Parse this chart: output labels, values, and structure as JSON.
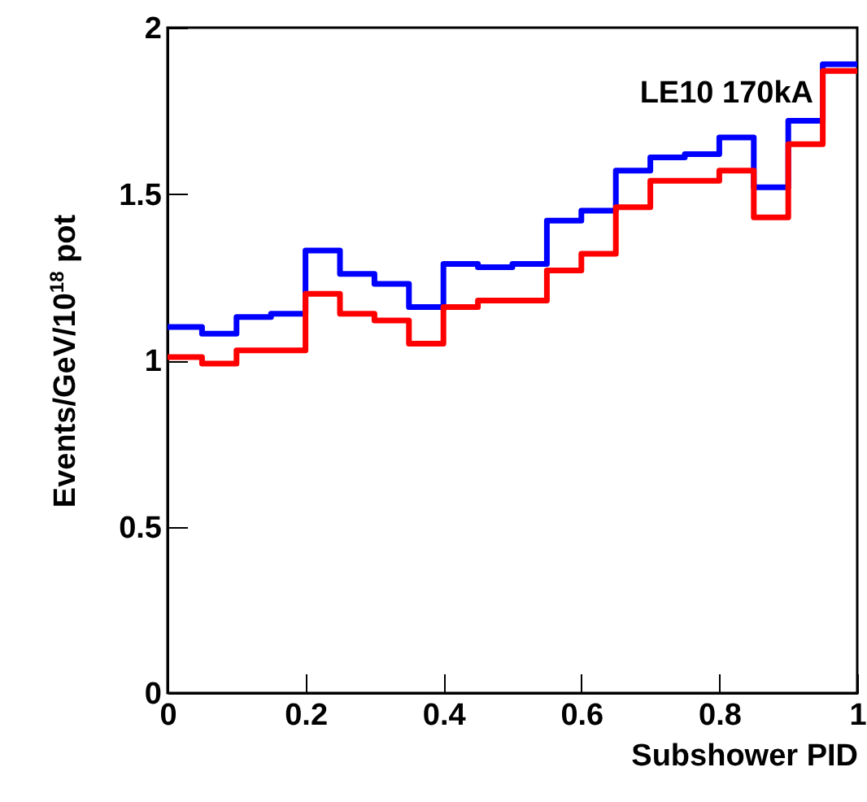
{
  "chart_data": {
    "type": "histogram",
    "xlabel": "Subshower PID",
    "ylabel": "Events/GeV/10$^{18}$ pot",
    "annotations": [
      "LE10 170kA"
    ],
    "bins": [
      0,
      0.05,
      0.1,
      0.15,
      0.2,
      0.25,
      0.3,
      0.35,
      0.4,
      0.45,
      0.5,
      0.55,
      0.6,
      0.65,
      0.7,
      0.75,
      0.8,
      0.85,
      0.9,
      0.95,
      1
    ],
    "series": [
      {
        "color": "#0000ff",
        "values": [
          1.1,
          1.08,
          1.13,
          1.14,
          1.33,
          1.26,
          1.23,
          1.16,
          1.29,
          1.28,
          1.29,
          1.42,
          1.45,
          1.57,
          1.61,
          1.62,
          1.67,
          1.52,
          1.72,
          1.89
        ]
      },
      {
        "color": "#ff0000",
        "values": [
          1.01,
          0.99,
          1.03,
          1.03,
          1.2,
          1.14,
          1.12,
          1.05,
          1.16,
          1.18,
          1.18,
          1.27,
          1.32,
          1.46,
          1.54,
          1.54,
          1.57,
          1.43,
          1.65,
          1.87
        ]
      }
    ],
    "xlim": [
      0,
      1
    ],
    "ylim": [
      0,
      2
    ],
    "xticks": [
      0,
      0.2,
      0.4,
      0.6,
      0.8,
      1
    ],
    "yticks": [
      0,
      0.5,
      1,
      1.5,
      2
    ]
  }
}
